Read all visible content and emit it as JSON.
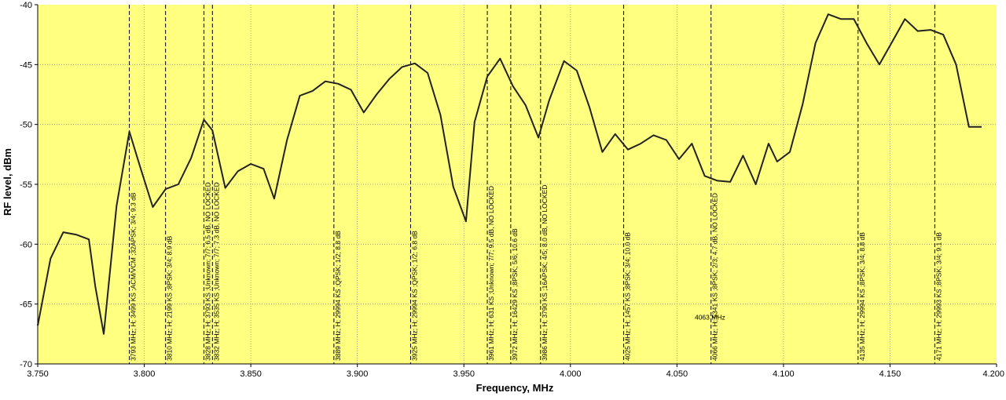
{
  "chart_data": {
    "type": "line",
    "xlabel": "Frequency, MHz",
    "ylabel": "RF level, dBm",
    "xlim": [
      3.75,
      4.2
    ],
    "ylim": [
      -70,
      -40
    ],
    "x_ticks": [
      "3.750",
      "3.800",
      "3.850",
      "3.900",
      "3.950",
      "4.000",
      "4.050",
      "4.100",
      "4.150",
      "4.200"
    ],
    "y_ticks": [
      "-40",
      "-45",
      "-50",
      "-55",
      "-60",
      "-65",
      "-70"
    ],
    "grid": true,
    "colors": {
      "plot_bg": "#ffff80",
      "line": "#222222",
      "grid": "#909090"
    },
    "series": [
      {
        "x": [
          3.75,
          3.756,
          3.762,
          3.768,
          3.774,
          3.777,
          3.781,
          3.787,
          3.793,
          3.798,
          3.804,
          3.81,
          3.816,
          3.822,
          3.828,
          3.832,
          3.838,
          3.844,
          3.85,
          3.856,
          3.861,
          3.867,
          3.873,
          3.879,
          3.885,
          3.891,
          3.897,
          3.903,
          3.909,
          3.915,
          3.921,
          3.927,
          3.933,
          3.939,
          3.945,
          3.951,
          3.955,
          3.961,
          3.967,
          3.973,
          3.979,
          3.985,
          3.99,
          3.997,
          4.003,
          4.009,
          4.015,
          4.021,
          4.027,
          4.033,
          4.039,
          4.045,
          4.051,
          4.057,
          4.063,
          4.069,
          4.075,
          4.081,
          4.087,
          4.093,
          4.097,
          4.103,
          4.109,
          4.115,
          4.121,
          4.127,
          4.133,
          4.139,
          4.145,
          4.151,
          4.157,
          4.163,
          4.169,
          4.175,
          4.181,
          4.187,
          4.193
        ],
        "y": [
          -66.8,
          -61.2,
          -59.0,
          -59.2,
          -59.6,
          -63.5,
          -67.5,
          -56.8,
          -50.6,
          -53.5,
          -56.9,
          -55.4,
          -55.0,
          -52.8,
          -49.6,
          -50.5,
          -55.3,
          -53.9,
          -53.3,
          -53.7,
          -56.2,
          -51.3,
          -47.6,
          -47.2,
          -46.4,
          -46.6,
          -47.1,
          -49.0,
          -47.5,
          -46.2,
          -45.2,
          -44.9,
          -45.7,
          -49.2,
          -55.2,
          -58.1,
          -49.8,
          -46.0,
          -44.5,
          -46.8,
          -48.4,
          -51.1,
          -48.0,
          -44.7,
          -45.5,
          -48.6,
          -52.3,
          -50.8,
          -52.1,
          -51.6,
          -50.9,
          -51.3,
          -52.9,
          -51.6,
          -54.3,
          -54.7,
          -54.8,
          -52.6,
          -55.0,
          -51.6,
          -53.1,
          -52.3,
          -48.3,
          -43.2,
          -40.8,
          -41.2,
          -41.2,
          -43.2,
          -45.0,
          -43.1,
          -41.2,
          -42.2,
          -42.1,
          -42.5,
          -45.0,
          -50.2,
          -50.2
        ]
      }
    ],
    "markers": [
      {
        "x": 3.793,
        "label": "3793 MHz; H; 3499 KS ;ACM/VCM ;32APSK; 3/4; 9.3 dB"
      },
      {
        "x": 3.81,
        "label": "3810 MHz; H; 2199 KS ;8PSK; 3/4; 8.9 dB"
      },
      {
        "x": 3.828,
        "label": "3828 MHz; H; 3793 KS ;Unknown; 7/7; 6.5 dB, NO LOCKED"
      },
      {
        "x": 3.832,
        "label": "3832 MHz; H; 3535 KS ;Unknown; 7/7; 7.3 dB, NO LOCKED"
      },
      {
        "x": 3.889,
        "label": "3889 MHz; H; 29994 KS ;QPSK; 1/2; 8.8 dB"
      },
      {
        "x": 3.925,
        "label": "3925 MHz; H; 29994 KS ;QPSK; 1/2; 6.8 dB"
      },
      {
        "x": 3.961,
        "label": "3961 MHz; H; 631 KS ;Unknown; 7/7; 9.5 dB, NO LOCKED"
      },
      {
        "x": 3.972,
        "label": "3972 MHz; H; 16429 KS ;8PSK; 5/6; 10.6 dB"
      },
      {
        "x": 3.986,
        "label": "3986 MHz; H; 3790 KS ;16APSK; 4/5; 8.0 dB, NO LOCKED"
      },
      {
        "x": 4.025,
        "label": "4025 MHz; H; 1457 KS ;8PSK; 3/4; 10.0 dB"
      },
      {
        "x": 4.066,
        "label": "4066 MHz; H; 5341 KS ;8PSK; 2/3; 4.7 dB, NO LOCKED"
      },
      {
        "x": 4.135,
        "label": "4135 MHz; H; 29994 KS ;8PSK; 3/4; 8.8 dB"
      },
      {
        "x": 4.171,
        "label": "4171 MHz; H; 29993 KS ;8PSK; 3/4; 9.1 dB"
      }
    ],
    "annotations": [
      {
        "x": 4.0655,
        "y": -66.1,
        "text": "4063 MHz"
      }
    ]
  }
}
